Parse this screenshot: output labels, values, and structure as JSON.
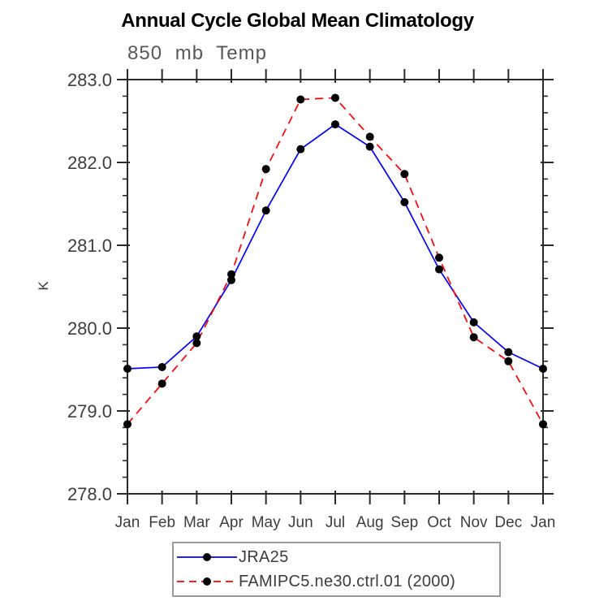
{
  "page": {
    "background_color": "#ffffff"
  },
  "chart_data": {
    "type": "line",
    "title": "Annual Cycle Global Mean Climatology",
    "subtitle": "850 mb Temp",
    "xlabel": "",
    "ylabel": "K",
    "x_tick_labels": [
      "Jan",
      "Feb",
      "Mar",
      "Apr",
      "May",
      "Jun",
      "Jul",
      "Aug",
      "Sep",
      "Oct",
      "Nov",
      "Dec",
      "Jan"
    ],
    "ylim": [
      278.0,
      283.0
    ],
    "y_major_step": 1.0,
    "y_minor_step": 0.2,
    "y_tick_labels": [
      "278.0",
      "279.0",
      "280.0",
      "281.0",
      "282.0",
      "283.0"
    ],
    "grid": false,
    "legend_position": "bottom-center-boxed",
    "axis_color": "#2a2a2a",
    "tick_label_color": "#3d3d3d",
    "marker_color": "#000000",
    "series": [
      {
        "name": "JRA25",
        "color": "#0000ff",
        "style": "solid",
        "marker": "circle",
        "values": [
          279.51,
          279.53,
          279.9,
          280.58,
          281.42,
          282.16,
          282.46,
          282.19,
          281.52,
          280.71,
          280.07,
          279.71,
          279.51
        ]
      },
      {
        "name": "FAMIPC5.ne30.ctrl.01 (2000)",
        "color": "#ff0000",
        "style": "dashed",
        "marker": "circle",
        "values": [
          278.84,
          279.33,
          279.82,
          280.65,
          281.92,
          282.76,
          282.78,
          282.31,
          281.86,
          280.85,
          279.89,
          279.6,
          278.84
        ]
      }
    ]
  }
}
